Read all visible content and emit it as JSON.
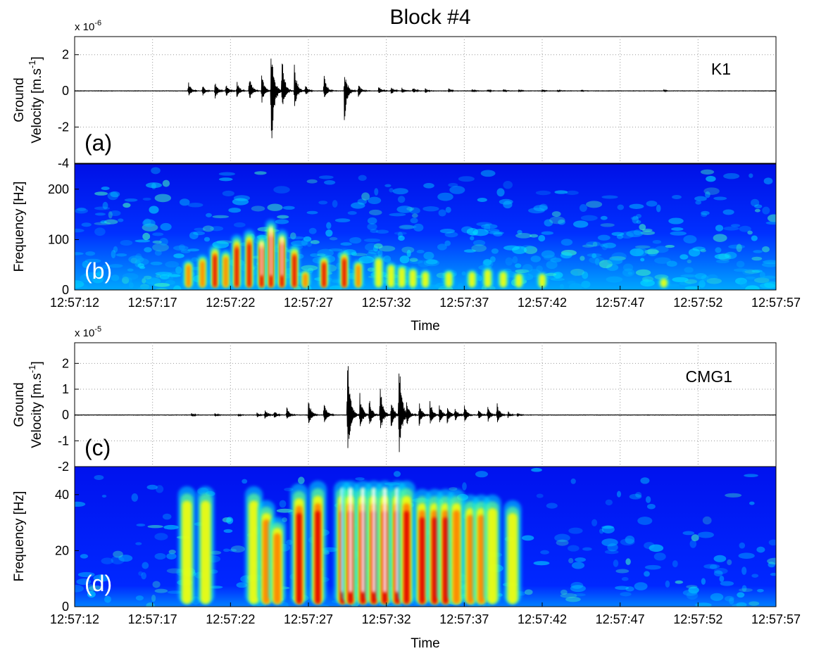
{
  "figure": {
    "title": "Block #4"
  },
  "chart_data": [
    {
      "id": "a",
      "type": "line",
      "panel_label": "(a)",
      "station": "K1",
      "ylabel_line1": "Ground",
      "ylabel_line2": "Velocity [m.s",
      "ylabel_sup": "-1",
      "ylabel_close": "]",
      "exponent_base": "x 10",
      "exponent_power": "-6",
      "ylim": [
        -4,
        3
      ],
      "yticks": [
        2,
        0,
        -2,
        -4
      ],
      "ytick_labels": [
        "2",
        "0",
        "-2",
        "-4"
      ],
      "grid": true,
      "xlim_seconds": [
        0,
        45
      ],
      "bursts": [
        {
          "t": 7.3,
          "amp_pos": 0.55,
          "amp_neg": 0.35
        },
        {
          "t": 8.2,
          "amp_pos": 0.35,
          "amp_neg": 0.35
        },
        {
          "t": 9.0,
          "amp_pos": 0.55,
          "amp_neg": 0.5
        },
        {
          "t": 9.7,
          "amp_pos": 0.45,
          "amp_neg": 0.45
        },
        {
          "t": 10.4,
          "amp_pos": 0.6,
          "amp_neg": 0.4
        },
        {
          "t": 11.2,
          "amp_pos": 0.9,
          "amp_neg": 0.6
        },
        {
          "t": 12.0,
          "amp_pos": 1.0,
          "amp_neg": 0.8
        },
        {
          "t": 12.6,
          "amp_pos": 3.0,
          "amp_neg": 4.0
        },
        {
          "t": 13.3,
          "amp_pos": 2.0,
          "amp_neg": 1.3
        },
        {
          "t": 14.1,
          "amp_pos": 1.5,
          "amp_neg": 1.1
        },
        {
          "t": 14.8,
          "amp_pos": 0.4,
          "amp_neg": 0.35
        },
        {
          "t": 16.0,
          "amp_pos": 0.9,
          "amp_neg": 0.5
        },
        {
          "t": 17.3,
          "amp_pos": 1.3,
          "amp_neg": 1.9
        },
        {
          "t": 18.2,
          "amp_pos": 0.45,
          "amp_neg": 0.35
        },
        {
          "t": 19.5,
          "amp_pos": 0.3,
          "amp_neg": 0.2
        },
        {
          "t": 20.3,
          "amp_pos": 0.25,
          "amp_neg": 0.2
        },
        {
          "t": 21.0,
          "amp_pos": 0.2,
          "amp_neg": 0.15
        },
        {
          "t": 21.7,
          "amp_pos": 0.2,
          "amp_neg": 0.15
        },
        {
          "t": 22.5,
          "amp_pos": 0.15,
          "amp_neg": 0.15
        },
        {
          "t": 24.0,
          "amp_pos": 0.15,
          "amp_neg": 0.1
        },
        {
          "t": 25.5,
          "amp_pos": 0.1,
          "amp_neg": 0.08
        },
        {
          "t": 26.5,
          "amp_pos": 0.1,
          "amp_neg": 0.08
        },
        {
          "t": 27.5,
          "amp_pos": 0.1,
          "amp_neg": 0.08
        },
        {
          "t": 28.5,
          "amp_pos": 0.08,
          "amp_neg": 0.08
        },
        {
          "t": 30.0,
          "amp_pos": 0.1,
          "amp_neg": 0.08
        },
        {
          "t": 31.0,
          "amp_pos": 0.08,
          "amp_neg": 0.06
        },
        {
          "t": 32.5,
          "amp_pos": 0.06,
          "amp_neg": 0.06
        },
        {
          "t": 37.8,
          "amp_pos": 0.06,
          "amp_neg": 0.05
        }
      ]
    },
    {
      "id": "b",
      "type": "heatmap",
      "panel_label": "(b)",
      "ylabel": "Frequency [Hz]",
      "ylim": [
        0,
        250
      ],
      "yticks": [
        200,
        100,
        0
      ],
      "ytick_labels": [
        "200",
        "100",
        "0"
      ],
      "xlabel": "Time",
      "xtick_labels": [
        "12:57:12",
        "12:57:17",
        "12:57:22",
        "12:57:27",
        "12:57:32",
        "12:57:37",
        "12:57:42",
        "12:57:47",
        "12:57:52",
        "12:57:57"
      ],
      "xlim_seconds": [
        0,
        45
      ],
      "colormap": "jet",
      "hotspots": [
        {
          "t": 7.3,
          "f_max": 60,
          "intensity": 0.85
        },
        {
          "t": 8.2,
          "f_max": 70,
          "intensity": 0.85
        },
        {
          "t": 9.0,
          "f_max": 90,
          "intensity": 0.9
        },
        {
          "t": 9.7,
          "f_max": 80,
          "intensity": 0.85
        },
        {
          "t": 10.4,
          "f_max": 110,
          "intensity": 0.9
        },
        {
          "t": 11.2,
          "f_max": 120,
          "intensity": 0.95
        },
        {
          "t": 12.0,
          "f_max": 110,
          "intensity": 1.0
        },
        {
          "t": 12.6,
          "f_max": 140,
          "intensity": 1.0
        },
        {
          "t": 13.3,
          "f_max": 120,
          "intensity": 1.0
        },
        {
          "t": 14.1,
          "f_max": 90,
          "intensity": 0.95
        },
        {
          "t": 14.8,
          "f_max": 40,
          "intensity": 0.85
        },
        {
          "t": 16.0,
          "f_max": 70,
          "intensity": 0.9
        },
        {
          "t": 17.3,
          "f_max": 80,
          "intensity": 0.95
        },
        {
          "t": 18.2,
          "f_max": 60,
          "intensity": 0.8
        },
        {
          "t": 19.5,
          "f_max": 70,
          "intensity": 0.75
        },
        {
          "t": 20.3,
          "f_max": 55,
          "intensity": 0.7
        },
        {
          "t": 21.0,
          "f_max": 50,
          "intensity": 0.7
        },
        {
          "t": 21.7,
          "f_max": 45,
          "intensity": 0.65
        },
        {
          "t": 22.5,
          "f_max": 40,
          "intensity": 0.65
        },
        {
          "t": 24.0,
          "f_max": 40,
          "intensity": 0.55
        },
        {
          "t": 25.5,
          "f_max": 40,
          "intensity": 0.5
        },
        {
          "t": 26.5,
          "f_max": 45,
          "intensity": 0.5
        },
        {
          "t": 27.5,
          "f_max": 40,
          "intensity": 0.5
        },
        {
          "t": 28.5,
          "f_max": 35,
          "intensity": 0.45
        },
        {
          "t": 30.0,
          "f_max": 35,
          "intensity": 0.45
        },
        {
          "t": 37.8,
          "f_max": 25,
          "intensity": 0.6
        }
      ]
    },
    {
      "id": "c",
      "type": "line",
      "panel_label": "(c)",
      "station": "CMG1",
      "ylabel_line1": "Ground",
      "ylabel_line2": "Velocity [m.s",
      "ylabel_sup": "-1",
      "ylabel_close": "]",
      "exponent_base": "x 10",
      "exponent_power": "-5",
      "ylim": [
        -2,
        2.8
      ],
      "yticks": [
        2,
        1,
        0,
        -1,
        -2
      ],
      "ytick_labels": [
        "2",
        "1",
        "0",
        "-1",
        "-2"
      ],
      "grid": true,
      "xlim_seconds": [
        0,
        45
      ],
      "bursts": [
        {
          "t": 7.5,
          "amp_pos": 0.08,
          "amp_neg": 0.08
        },
        {
          "t": 9.0,
          "amp_pos": 0.08,
          "amp_neg": 0.08
        },
        {
          "t": 10.5,
          "amp_pos": 0.06,
          "amp_neg": 0.06
        },
        {
          "t": 11.7,
          "amp_pos": 0.1,
          "amp_neg": 0.1
        },
        {
          "t": 12.2,
          "amp_pos": 0.25,
          "amp_neg": 0.2
        },
        {
          "t": 12.8,
          "amp_pos": 0.2,
          "amp_neg": 0.15
        },
        {
          "t": 13.6,
          "amp_pos": 0.35,
          "amp_neg": 0.25
        },
        {
          "t": 15.0,
          "amp_pos": 0.6,
          "amp_neg": 0.45
        },
        {
          "t": 16.0,
          "amp_pos": 0.6,
          "amp_neg": 0.4
        },
        {
          "t": 17.5,
          "amp_pos": 2.8,
          "amp_neg": 2.0
        },
        {
          "t": 18.3,
          "amp_pos": 0.9,
          "amp_neg": 0.6
        },
        {
          "t": 18.9,
          "amp_pos": 0.7,
          "amp_neg": 0.5
        },
        {
          "t": 19.6,
          "amp_pos": 1.2,
          "amp_neg": 0.8
        },
        {
          "t": 20.3,
          "amp_pos": 0.7,
          "amp_neg": 0.6
        },
        {
          "t": 20.8,
          "amp_pos": 2.6,
          "amp_neg": 2.0
        },
        {
          "t": 21.3,
          "amp_pos": 0.6,
          "amp_neg": 0.5
        },
        {
          "t": 22.1,
          "amp_pos": 0.55,
          "amp_neg": 0.45
        },
        {
          "t": 22.8,
          "amp_pos": 0.6,
          "amp_neg": 0.5
        },
        {
          "t": 23.4,
          "amp_pos": 0.45,
          "amp_neg": 0.4
        },
        {
          "t": 23.9,
          "amp_pos": 0.4,
          "amp_neg": 0.35
        },
        {
          "t": 24.4,
          "amp_pos": 0.35,
          "amp_neg": 0.3
        },
        {
          "t": 25.0,
          "amp_pos": 0.45,
          "amp_neg": 0.35
        },
        {
          "t": 25.9,
          "amp_pos": 0.25,
          "amp_neg": 0.2
        },
        {
          "t": 26.5,
          "amp_pos": 0.35,
          "amp_neg": 0.3
        },
        {
          "t": 27.1,
          "amp_pos": 0.5,
          "amp_neg": 0.35
        },
        {
          "t": 27.8,
          "amp_pos": 0.15,
          "amp_neg": 0.12
        },
        {
          "t": 28.4,
          "amp_pos": 0.1,
          "amp_neg": 0.08
        }
      ]
    },
    {
      "id": "d",
      "type": "heatmap",
      "panel_label": "(d)",
      "ylabel": "Frequency [Hz]",
      "ylim": [
        0,
        50
      ],
      "yticks": [
        40,
        20,
        0
      ],
      "ytick_labels": [
        "40",
        "20",
        "0"
      ],
      "xlabel": "Time",
      "xtick_labels": [
        "12:57:12",
        "12:57:17",
        "12:57:22",
        "12:57:27",
        "12:57:32",
        "12:57:37",
        "12:57:42",
        "12:57:47",
        "12:57:52",
        "12:57:57"
      ],
      "xlim_seconds": [
        0,
        45
      ],
      "colormap": "jet",
      "hotspots": [
        {
          "t": 7.2,
          "f_max": 43,
          "intensity": 0.65
        },
        {
          "t": 8.4,
          "f_max": 43,
          "intensity": 0.65
        },
        {
          "t": 11.5,
          "f_max": 43,
          "intensity": 0.7
        },
        {
          "t": 12.3,
          "f_max": 38,
          "intensity": 0.85
        },
        {
          "t": 13.0,
          "f_max": 32,
          "intensity": 0.8
        },
        {
          "t": 14.4,
          "f_max": 44,
          "intensity": 0.9
        },
        {
          "t": 15.6,
          "f_max": 45,
          "intensity": 0.95
        },
        {
          "t": 17.2,
          "f_max": 45,
          "intensity": 1.0
        },
        {
          "t": 17.7,
          "f_max": 45,
          "intensity": 1.0
        },
        {
          "t": 18.5,
          "f_max": 45,
          "intensity": 1.0
        },
        {
          "t": 19.2,
          "f_max": 45,
          "intensity": 1.0
        },
        {
          "t": 19.9,
          "f_max": 45,
          "intensity": 0.98
        },
        {
          "t": 20.7,
          "f_max": 45,
          "intensity": 1.0
        },
        {
          "t": 21.3,
          "f_max": 45,
          "intensity": 0.9
        },
        {
          "t": 22.3,
          "f_max": 42,
          "intensity": 0.9
        },
        {
          "t": 23.1,
          "f_max": 42,
          "intensity": 0.92
        },
        {
          "t": 23.8,
          "f_max": 42,
          "intensity": 0.9
        },
        {
          "t": 24.5,
          "f_max": 42,
          "intensity": 0.85
        },
        {
          "t": 25.4,
          "f_max": 40,
          "intensity": 0.8
        },
        {
          "t": 26.1,
          "f_max": 40,
          "intensity": 0.82
        },
        {
          "t": 26.8,
          "f_max": 40,
          "intensity": 0.78
        },
        {
          "t": 28.1,
          "f_max": 38,
          "intensity": 0.7
        }
      ]
    }
  ]
}
